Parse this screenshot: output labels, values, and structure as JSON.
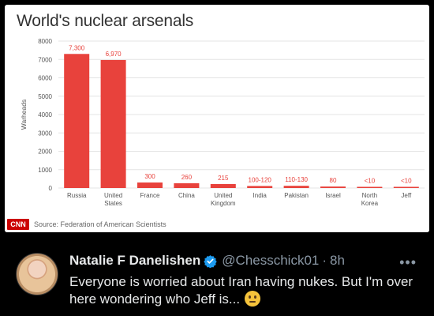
{
  "chart_card": {
    "title": "World's nuclear arsenals",
    "source": "Source: Federation of American Scientists",
    "logo_text": "CNN"
  },
  "chart_data": {
    "type": "bar",
    "title": "World's nuclear arsenals",
    "ylabel": "Warheads",
    "ylim": [
      0,
      8000
    ],
    "yticks": [
      0,
      1000,
      2000,
      3000,
      4000,
      5000,
      6000,
      7000,
      8000
    ],
    "grid": true,
    "bar_color": "#e8423c",
    "categories": [
      "Russia",
      "United States",
      "France",
      "China",
      "United Kingdom",
      "India",
      "Pakistan",
      "Israel",
      "North Korea",
      "Jeff"
    ],
    "values": [
      7300,
      6970,
      300,
      260,
      215,
      110,
      120,
      80,
      10,
      10
    ],
    "data_labels": [
      "7,300",
      "6,970",
      "300",
      "260",
      "215",
      "100-120",
      "110-130",
      "80",
      "<10",
      "<10"
    ]
  },
  "tweet": {
    "display_name": "Natalie F Danelishen",
    "handle": "@Chesschick01",
    "separator": "·",
    "time": "8h",
    "text": "Everyone is worried about Iran having nukes. But I'm over here wondering who Jeff is...",
    "verified_color": "#1d9bf0",
    "icons": [
      "avatar",
      "verified-icon",
      "more-icon",
      "thinking-face-emoji"
    ]
  }
}
